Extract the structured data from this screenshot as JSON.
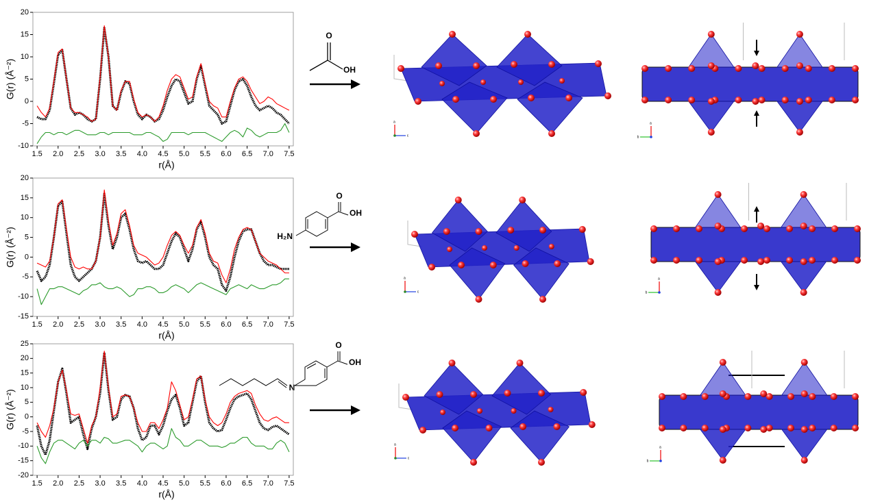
{
  "chart_data": [
    {
      "type": "line",
      "ylabel": "G(r) (Å⁻²)",
      "xlabel": "r(Å)",
      "x": [
        1.5,
        1.6,
        1.7,
        1.8,
        1.9,
        2.0,
        2.1,
        2.2,
        2.3,
        2.4,
        2.5,
        2.6,
        2.7,
        2.8,
        2.9,
        3.0,
        3.1,
        3.2,
        3.3,
        3.4,
        3.5,
        3.6,
        3.7,
        3.8,
        3.9,
        4.0,
        4.1,
        4.2,
        4.3,
        4.4,
        4.5,
        4.6,
        4.7,
        4.8,
        4.9,
        5.0,
        5.1,
        5.2,
        5.3,
        5.4,
        5.5,
        5.6,
        5.7,
        5.8,
        5.9,
        6.0,
        6.1,
        6.2,
        6.3,
        6.4,
        6.5,
        6.6,
        6.7,
        6.8,
        6.9,
        7.0,
        7.1,
        7.2,
        7.3,
        7.4,
        7.5
      ],
      "series": [
        {
          "color": "#000000",
          "values": [
            -3.5,
            -4,
            -4,
            -2,
            4,
            10.5,
            11.5,
            5,
            -1.5,
            -3,
            -2.5,
            -3,
            -4,
            -4.5,
            -4,
            5,
            16.5,
            10,
            -1,
            -2,
            2,
            4.5,
            4,
            0,
            -3,
            -4,
            -3,
            -3.5,
            -4.5,
            -4,
            -2,
            1,
            3.5,
            5,
            4.5,
            2,
            -0.5,
            0,
            5,
            8,
            3.5,
            -1,
            -2,
            -3,
            -5,
            -4.5,
            -1,
            2.5,
            4.5,
            5,
            3.5,
            1,
            -1,
            -2,
            -1.5,
            -1,
            -1.5,
            -2.5,
            -3,
            -4,
            -5
          ]
        },
        {
          "color": "#ff0000",
          "values": [
            -1,
            -2.5,
            -3.5,
            -1.5,
            4.5,
            11,
            11.8,
            5,
            -1.5,
            -2.5,
            -2.5,
            -3,
            -3.5,
            -4.5,
            -4,
            5.5,
            17,
            10,
            -1,
            -2,
            2.5,
            4.5,
            4.5,
            0.5,
            -2.5,
            -3.5,
            -3,
            -3.5,
            -4.5,
            -3.5,
            -1,
            2.5,
            5,
            6,
            5.5,
            3,
            0.5,
            1,
            5.5,
            8.5,
            4,
            0,
            -1,
            -1.5,
            -3.5,
            -3.5,
            0,
            3,
            5,
            5.5,
            4.5,
            2.5,
            1,
            -0.5,
            0,
            1,
            0.5,
            -0.5,
            -1,
            -1.5,
            -2
          ]
        },
        {
          "color": "#2a9a2a",
          "values": [
            -9.5,
            -8,
            -7,
            -7,
            -7.5,
            -7,
            -7,
            -7.5,
            -7,
            -6.5,
            -6.5,
            -7,
            -7.5,
            -7.5,
            -7.5,
            -7,
            -7,
            -7.5,
            -7,
            -7,
            -7,
            -7,
            -7,
            -7.5,
            -7.5,
            -7.5,
            -7,
            -7,
            -7.5,
            -8,
            -9,
            -8.5,
            -7,
            -7,
            -7,
            -7,
            -7.5,
            -7,
            -7,
            -7,
            -7,
            -7.5,
            -8,
            -8.5,
            -9,
            -8,
            -7,
            -6.5,
            -7,
            -8,
            -6,
            -6.5,
            -7.5,
            -8,
            -7.5,
            -7,
            -7,
            -7,
            -6.5,
            -5,
            -7
          ]
        }
      ],
      "xlim": [
        1.4,
        7.6
      ],
      "xticks": [
        1.5,
        {
          "value": 2,
          "label": "2.0"
        },
        2.5,
        {
          "value": 3,
          "label": "3.0"
        },
        3.5,
        {
          "value": 4,
          "label": "4.0"
        },
        4.5,
        {
          "value": 5,
          "label": "5.0"
        },
        5.5,
        {
          "value": 6,
          "label": "6.0"
        },
        6.5,
        {
          "value": 7,
          "label": "7.0"
        },
        7.5
      ],
      "ylim": [
        -10,
        20
      ],
      "yticks": [
        -10,
        -5,
        0,
        5,
        10,
        15,
        20
      ]
    },
    {
      "type": "line",
      "ylabel": "G(r) (Å⁻²)",
      "xlabel": "r(Å)",
      "x": [
        1.5,
        1.6,
        1.7,
        1.8,
        1.9,
        2.0,
        2.1,
        2.2,
        2.3,
        2.4,
        2.5,
        2.6,
        2.7,
        2.8,
        2.9,
        3.0,
        3.1,
        3.2,
        3.3,
        3.4,
        3.5,
        3.6,
        3.7,
        3.8,
        3.9,
        4.0,
        4.1,
        4.2,
        4.3,
        4.4,
        4.5,
        4.6,
        4.7,
        4.8,
        4.9,
        5.0,
        5.1,
        5.2,
        5.3,
        5.4,
        5.5,
        5.6,
        5.7,
        5.8,
        5.9,
        6.0,
        6.1,
        6.2,
        6.3,
        6.4,
        6.5,
        6.6,
        6.7,
        6.8,
        6.9,
        7.0,
        7.1,
        7.2,
        7.3,
        7.4,
        7.5
      ],
      "series": [
        {
          "color": "#000000",
          "values": [
            -3.5,
            -6,
            -5,
            -2,
            5,
            13,
            14,
            6,
            -2,
            -5,
            -6,
            -5,
            -4,
            -3,
            -1,
            5,
            16,
            8,
            2,
            5,
            10,
            11,
            7,
            2,
            -1,
            -1.5,
            -1,
            -2,
            -3,
            -3,
            -2,
            1,
            4,
            6,
            5,
            2,
            -1,
            2,
            7,
            9,
            5,
            0,
            -2,
            -3,
            -7,
            -8.5,
            -5,
            0,
            4,
            6.5,
            7,
            7,
            4,
            1,
            -1,
            -2,
            -2,
            -2.5,
            -3,
            -3,
            -3
          ]
        },
        {
          "color": "#ff0000",
          "values": [
            -1.5,
            -2,
            -2.5,
            -1,
            5,
            13.5,
            14.5,
            7,
            0,
            -2.5,
            -3,
            -2.5,
            -3,
            -3,
            -1,
            5,
            17,
            9,
            3,
            6,
            11,
            12,
            8,
            3,
            1,
            0.5,
            0,
            -1,
            -2,
            -1.5,
            0,
            3,
            5.5,
            6.5,
            5.5,
            3,
            1,
            3,
            7.5,
            9.5,
            6,
            1,
            -1,
            -1.5,
            -4.5,
            -6.5,
            -3,
            2,
            5,
            7,
            7.5,
            7,
            4,
            1,
            0,
            -1,
            -1.5,
            -2,
            -3,
            -4,
            -4
          ]
        },
        {
          "color": "#2a9a2a",
          "values": [
            -8,
            -12,
            -10,
            -8,
            -8,
            -7.5,
            -7.5,
            -8,
            -8.5,
            -9,
            -9.5,
            -8.5,
            -8,
            -7,
            -7,
            -6.5,
            -7.5,
            -8,
            -8,
            -7.5,
            -8,
            -9,
            -10,
            -9.5,
            -8,
            -8,
            -7.5,
            -7.5,
            -8,
            -9,
            -9,
            -8.5,
            -7.5,
            -7,
            -7.5,
            -8,
            -9,
            -8,
            -7,
            -6.5,
            -7,
            -7.5,
            -8,
            -8.5,
            -9,
            -9.5,
            -8,
            -7.5,
            -7,
            -7.5,
            -8,
            -7,
            -7.5,
            -8,
            -8,
            -7.5,
            -7,
            -7,
            -6.5,
            -5.5,
            -5.5
          ]
        }
      ],
      "xlim": [
        1.4,
        7.6
      ],
      "xticks": [
        1.5,
        {
          "value": 2,
          "label": "2.0"
        },
        2.5,
        {
          "value": 3,
          "label": "3.0"
        },
        3.5,
        {
          "value": 4,
          "label": "4.0"
        },
        4.5,
        {
          "value": 5,
          "label": "5.0"
        },
        5.5,
        {
          "value": 6,
          "label": "6.0"
        },
        6.5,
        {
          "value": 7,
          "label": "7.0"
        },
        7.5
      ],
      "ylim": [
        -15,
        20
      ],
      "yticks": [
        -15,
        -10,
        -5,
        0,
        5,
        10,
        15,
        20
      ]
    },
    {
      "type": "line",
      "ylabel": "G(r) (Å⁻²)",
      "xlabel": "r(Å)",
      "x": [
        1.5,
        1.6,
        1.7,
        1.8,
        1.9,
        2.0,
        2.1,
        2.2,
        2.3,
        2.4,
        2.5,
        2.6,
        2.7,
        2.8,
        2.9,
        3.0,
        3.1,
        3.2,
        3.3,
        3.4,
        3.5,
        3.6,
        3.7,
        3.8,
        3.9,
        4.0,
        4.1,
        4.2,
        4.3,
        4.4,
        4.5,
        4.6,
        4.7,
        4.8,
        4.9,
        5.0,
        5.1,
        5.2,
        5.3,
        5.4,
        5.5,
        5.6,
        5.7,
        5.8,
        5.9,
        6.0,
        6.1,
        6.2,
        6.3,
        6.4,
        6.5,
        6.6,
        6.7,
        6.8,
        6.9,
        7.0,
        7.1,
        7.2,
        7.3,
        7.4,
        7.5
      ],
      "series": [
        {
          "color": "#000000",
          "values": [
            -3,
            -10,
            -13,
            -8,
            2,
            12,
            16.5,
            8,
            -2,
            -1,
            0,
            -6,
            -11,
            -4,
            0,
            8,
            22,
            9,
            -1,
            0,
            6,
            7.5,
            7,
            3,
            -4,
            -8,
            -7,
            -3,
            -3,
            -6,
            -3,
            2,
            6,
            7.5,
            3,
            -3,
            -2,
            5,
            12,
            14,
            5,
            -2,
            -4,
            -5,
            -4.5,
            -1,
            3,
            6,
            7,
            7.5,
            8,
            6,
            2,
            -2,
            -4,
            -4.5,
            -3.5,
            -3,
            -4,
            -5,
            -6
          ]
        },
        {
          "color": "#ff0000",
          "values": [
            -2,
            -5,
            -7,
            -3,
            3,
            12,
            16,
            9,
            1,
            0.5,
            1,
            -4,
            -9,
            -3,
            0,
            10,
            22.5,
            10,
            0,
            1,
            7,
            7.5,
            7,
            3,
            -2,
            -5,
            -5,
            -2,
            -2,
            -4,
            -1,
            3,
            12,
            9,
            4,
            -1,
            0,
            6,
            13,
            14,
            6,
            0,
            -2,
            -3,
            -2,
            1,
            5,
            7,
            8,
            8.5,
            9,
            8,
            4,
            1,
            -1,
            -1.5,
            -0.5,
            0,
            -1,
            -2,
            -2
          ]
        },
        {
          "color": "#2a9a2a",
          "values": [
            -10,
            -14,
            -16,
            -12,
            -9,
            -8,
            -8,
            -9,
            -10,
            -11,
            -9,
            -8,
            -10,
            -8,
            -8,
            -9,
            -7,
            -7.5,
            -9,
            -9,
            -8.5,
            -8,
            -8,
            -9,
            -10,
            -12,
            -10,
            -9,
            -9,
            -10,
            -11,
            -10,
            -4,
            -7,
            -8,
            -10,
            -10,
            -9,
            -8,
            -8,
            -9,
            -10,
            -10,
            -10,
            -10.5,
            -10,
            -9,
            -9,
            -8,
            -7,
            -7,
            -9,
            -10,
            -10,
            -10,
            -11,
            -11,
            -9,
            -8,
            -9,
            -12
          ]
        }
      ],
      "xlim": [
        1.4,
        7.6
      ],
      "xticks": [
        1.5,
        {
          "value": 2,
          "label": "2.0"
        },
        2.5,
        {
          "value": 3,
          "label": "3.0"
        },
        3.5,
        {
          "value": 4,
          "label": "4.0"
        },
        4.5,
        {
          "value": 5,
          "label": "5.0"
        },
        5.5,
        {
          "value": 6,
          "label": "6.0"
        },
        6.5,
        {
          "value": 7,
          "label": "7.0"
        },
        7.5
      ],
      "ylim": [
        -20,
        25
      ],
      "yticks": [
        -20,
        -15,
        -10,
        -5,
        0,
        5,
        10,
        15,
        20,
        25
      ]
    }
  ],
  "molecules": [
    {
      "labels": [
        "O",
        "OH"
      ]
    },
    {
      "labels": [
        "O",
        "OH",
        "H₂N"
      ]
    },
    {
      "labels": [
        "O",
        "OH",
        "N"
      ]
    }
  ],
  "structures": [
    {
      "axes": [
        [
          "a",
          "c"
        ],
        [
          "a",
          "b"
        ]
      ]
    },
    {
      "axes": [
        [
          "a",
          "c"
        ],
        [
          "a",
          "b"
        ]
      ]
    },
    {
      "axes": [
        [
          "a",
          "c"
        ],
        [
          "a",
          "b"
        ]
      ]
    }
  ]
}
